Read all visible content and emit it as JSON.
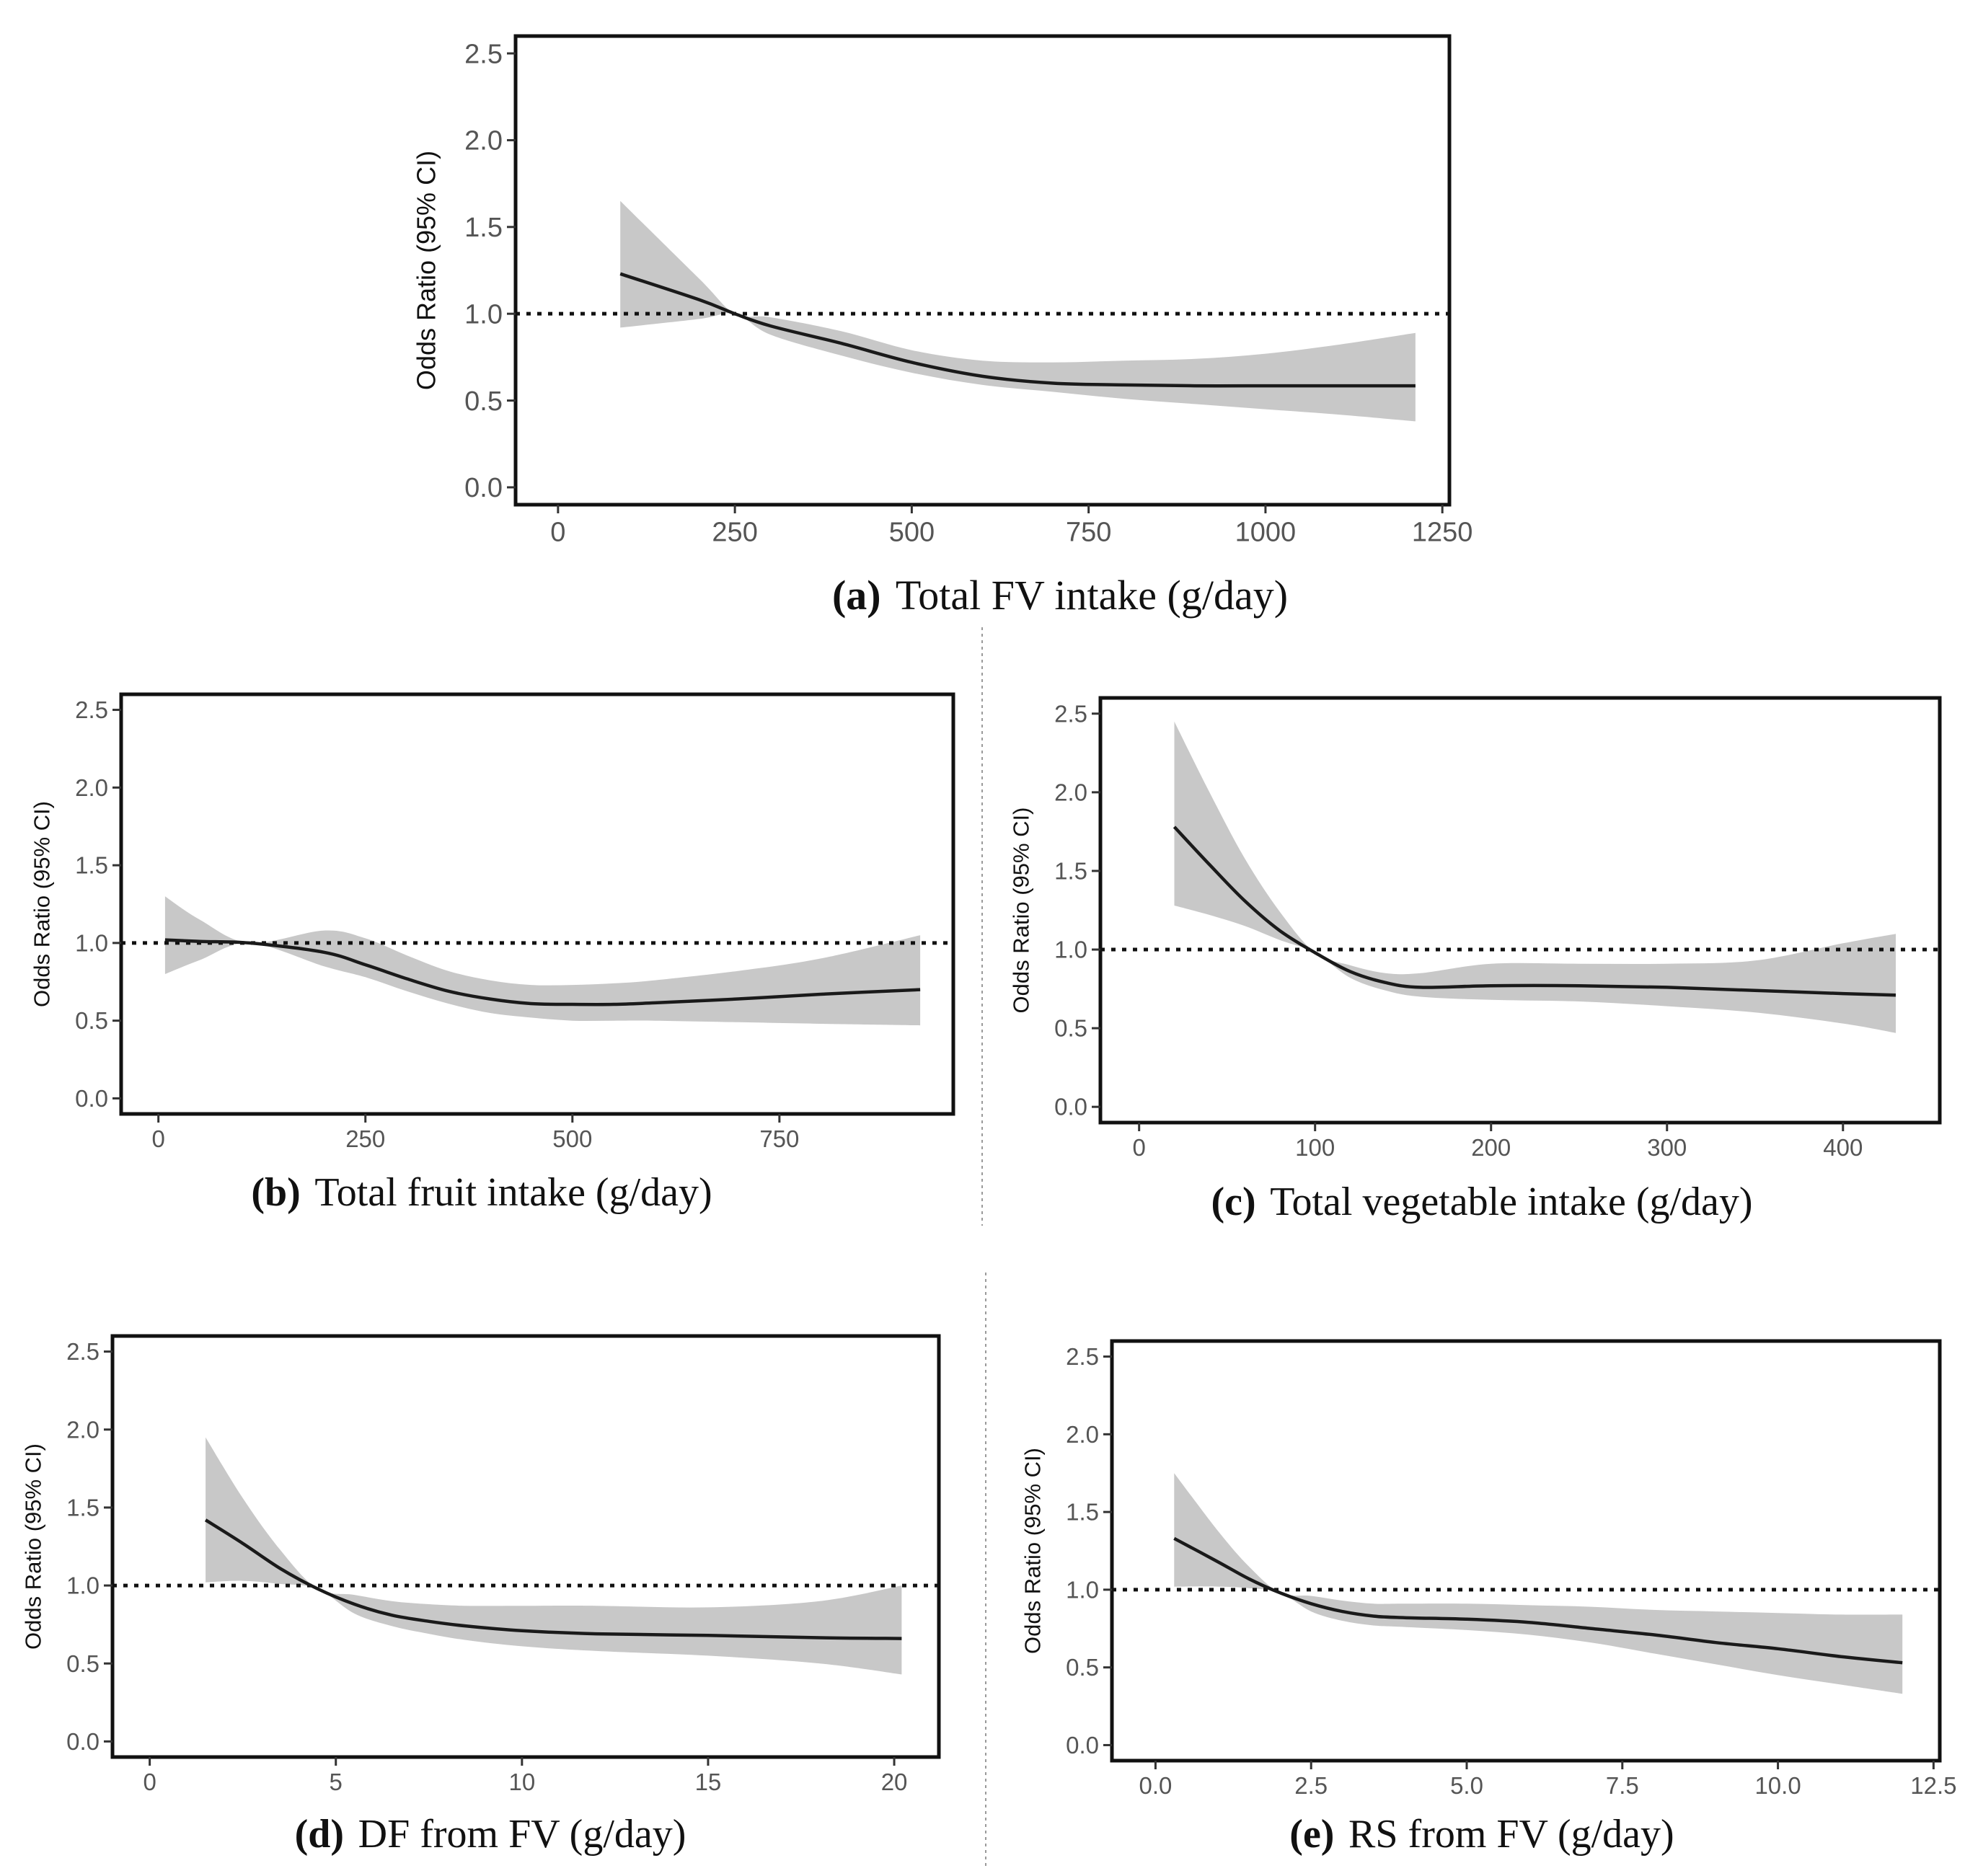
{
  "chart_data": [
    {
      "id": "a",
      "type": "line",
      "caption_letter": "(a)",
      "caption_text": "Total FV intake (g/day)",
      "xlabel": "Total FV intake (g/day)",
      "ylabel": "Odds Ratio (95% CI)",
      "xlim": [
        -60,
        1260
      ],
      "ylim": [
        -0.1,
        2.6
      ],
      "xticks": [
        0,
        250,
        500,
        750,
        1000,
        1250
      ],
      "xtick_labels": [
        "0",
        "250",
        "500",
        "750",
        "1000",
        "1250"
      ],
      "yticks": [
        0.0,
        0.5,
        1.0,
        1.5,
        2.0,
        2.5
      ],
      "ytick_labels": [
        "0.0",
        "0.5",
        "1.0",
        "1.5",
        "2.0",
        "2.5"
      ],
      "reference_line": 1.0,
      "series": [
        {
          "name": "Odds ratio",
          "x": [
            88,
            200,
            250,
            300,
            400,
            500,
            600,
            700,
            800,
            900,
            1000,
            1100,
            1212
          ],
          "y": [
            1.23,
            1.08,
            1.0,
            0.93,
            0.83,
            0.72,
            0.64,
            0.6,
            0.59,
            0.585,
            0.585,
            0.585,
            0.585
          ],
          "lower": [
            0.92,
            0.97,
            1.0,
            0.88,
            0.76,
            0.66,
            0.59,
            0.55,
            0.51,
            0.48,
            0.45,
            0.42,
            0.38
          ],
          "upper": [
            1.65,
            1.2,
            1.0,
            0.98,
            0.9,
            0.79,
            0.73,
            0.72,
            0.73,
            0.74,
            0.77,
            0.82,
            0.89
          ]
        }
      ]
    },
    {
      "id": "b",
      "type": "line",
      "caption_letter": "(b)",
      "caption_text": "Total fruit intake (g/day)",
      "xlabel": "Total fruit intake (g/day)",
      "ylabel": "Odds Ratio (95% CI)",
      "xlim": [
        -45,
        960
      ],
      "ylim": [
        -0.1,
        2.6
      ],
      "xticks": [
        0,
        250,
        500,
        750
      ],
      "xtick_labels": [
        "0",
        "250",
        "500",
        "750"
      ],
      "yticks": [
        0.0,
        0.5,
        1.0,
        1.5,
        2.0,
        2.5
      ],
      "ytick_labels": [
        "0.0",
        "0.5",
        "1.0",
        "1.5",
        "2.0",
        "2.5"
      ],
      "reference_line": 1.0,
      "series": [
        {
          "name": "Odds ratio",
          "x": [
            8,
            50,
            110,
            200,
            250,
            300,
            350,
            400,
            450,
            500,
            550,
            600,
            700,
            800,
            920
          ],
          "y": [
            1.02,
            1.01,
            1.0,
            0.94,
            0.86,
            0.77,
            0.69,
            0.64,
            0.61,
            0.605,
            0.605,
            0.615,
            0.64,
            0.67,
            0.7
          ],
          "lower": [
            0.8,
            0.89,
            1.0,
            0.85,
            0.78,
            0.69,
            0.61,
            0.55,
            0.52,
            0.5,
            0.5,
            0.5,
            0.49,
            0.48,
            0.47
          ],
          "upper": [
            1.3,
            1.15,
            1.0,
            1.08,
            1.03,
            0.92,
            0.82,
            0.76,
            0.73,
            0.73,
            0.74,
            0.76,
            0.82,
            0.9,
            1.05
          ]
        }
      ]
    },
    {
      "id": "c",
      "type": "line",
      "caption_letter": "(c)",
      "caption_text": "Total vegetable intake (g/day)",
      "xlabel": "Total vegetable intake (g/day)",
      "ylabel": "Odds Ratio (95% CI)",
      "xlim": [
        -22,
        455
      ],
      "ylim": [
        -0.1,
        2.6
      ],
      "xticks": [
        0,
        100,
        200,
        300,
        400
      ],
      "xtick_labels": [
        "0",
        "100",
        "200",
        "300",
        "400"
      ],
      "yticks": [
        0.0,
        0.5,
        1.0,
        1.5,
        2.0,
        2.5
      ],
      "ytick_labels": [
        "0.0",
        "0.5",
        "1.0",
        "1.5",
        "2.0",
        "2.5"
      ],
      "reference_line": 1.0,
      "series": [
        {
          "name": "Odds ratio",
          "x": [
            20,
            40,
            60,
            80,
            100,
            120,
            140,
            160,
            200,
            250,
            300,
            350,
            400,
            430
          ],
          "y": [
            1.78,
            1.54,
            1.31,
            1.12,
            0.98,
            0.86,
            0.79,
            0.76,
            0.77,
            0.77,
            0.76,
            0.74,
            0.72,
            0.71
          ],
          "lower": [
            1.28,
            1.22,
            1.15,
            1.06,
            0.98,
            0.82,
            0.74,
            0.7,
            0.68,
            0.67,
            0.64,
            0.6,
            0.53,
            0.47
          ],
          "upper": [
            2.45,
            2.0,
            1.58,
            1.24,
            0.98,
            0.9,
            0.85,
            0.85,
            0.91,
            0.91,
            0.91,
            0.93,
            1.04,
            1.1
          ]
        }
      ]
    },
    {
      "id": "d",
      "type": "line",
      "caption_letter": "(d)",
      "caption_text": "DF from FV (g/day)",
      "xlabel": "DF from FV (g/day)",
      "ylabel": "Odds Ratio (95% CI)",
      "xlim": [
        -1,
        21.2
      ],
      "ylim": [
        -0.1,
        2.6
      ],
      "xticks": [
        0,
        5,
        10,
        15,
        20
      ],
      "xtick_labels": [
        "0",
        "5",
        "10",
        "15",
        "20"
      ],
      "yticks": [
        0.0,
        0.5,
        1.0,
        1.5,
        2.0,
        2.5
      ],
      "ytick_labels": [
        "0.0",
        "0.5",
        "1.0",
        "1.5",
        "2.0",
        "2.5"
      ],
      "reference_line": 1.0,
      "series": [
        {
          "name": "Odds ratio",
          "x": [
            1.5,
            2.5,
            3.5,
            4.5,
            5.5,
            6.5,
            7.5,
            8.5,
            10,
            12,
            15,
            18,
            20.2
          ],
          "y": [
            1.42,
            1.27,
            1.11,
            0.98,
            0.88,
            0.81,
            0.77,
            0.74,
            0.71,
            0.69,
            0.68,
            0.665,
            0.66
          ],
          "lower": [
            1.02,
            1.03,
            1.01,
            0.98,
            0.82,
            0.74,
            0.69,
            0.65,
            0.61,
            0.58,
            0.55,
            0.5,
            0.43
          ],
          "upper": [
            1.95,
            1.56,
            1.23,
            0.98,
            0.94,
            0.9,
            0.88,
            0.87,
            0.87,
            0.87,
            0.86,
            0.9,
            1.0
          ]
        }
      ]
    },
    {
      "id": "e",
      "type": "line",
      "caption_letter": "(e)",
      "caption_text": "RS from FV (g/day)",
      "xlabel": "RS from FV (g/day)",
      "ylabel": "Odds Ratio (95% CI)",
      "xlim": [
        -0.7,
        12.6
      ],
      "ylim": [
        -0.1,
        2.6
      ],
      "xticks": [
        0,
        2.5,
        5,
        7.5,
        10,
        12.5
      ],
      "xtick_labels": [
        "0.0",
        "2.5",
        "5.0",
        "7.5",
        "10.0",
        "12.5"
      ],
      "yticks": [
        0.0,
        0.5,
        1.0,
        1.5,
        2.0,
        2.5
      ],
      "ytick_labels": [
        "0.0",
        "0.5",
        "1.0",
        "1.5",
        "2.0",
        "2.5"
      ],
      "reference_line": 1.0,
      "series": [
        {
          "name": "Odds ratio",
          "x": [
            0.3,
            1.0,
            1.5,
            2.0,
            2.5,
            3.0,
            3.5,
            4.0,
            5.0,
            6.0,
            7.0,
            8.0,
            9.0,
            10.0,
            11.0,
            12.0
          ],
          "y": [
            1.33,
            1.18,
            1.07,
            0.98,
            0.91,
            0.86,
            0.83,
            0.82,
            0.81,
            0.79,
            0.75,
            0.71,
            0.66,
            0.62,
            0.57,
            0.53
          ],
          "lower": [
            1.02,
            1.02,
            1.01,
            0.98,
            0.86,
            0.8,
            0.77,
            0.76,
            0.74,
            0.71,
            0.66,
            0.59,
            0.52,
            0.45,
            0.39,
            0.33
          ],
          "upper": [
            1.75,
            1.38,
            1.15,
            0.98,
            0.96,
            0.93,
            0.91,
            0.91,
            0.91,
            0.9,
            0.89,
            0.87,
            0.86,
            0.85,
            0.84,
            0.84
          ]
        }
      ]
    }
  ]
}
